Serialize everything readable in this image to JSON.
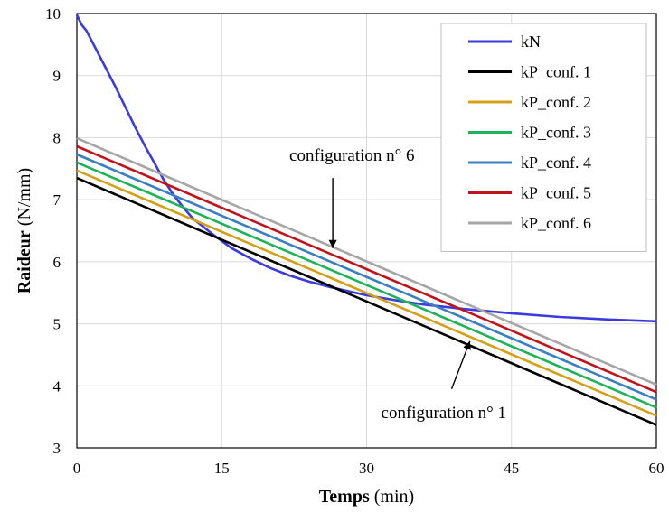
{
  "chart_data": {
    "type": "line",
    "xlabel_bold": "Temps",
    "xlabel_unit": " (min)",
    "ylabel_bold": "Raideur",
    "ylabel_unit": " (N/mm)",
    "xlim": [
      0,
      60
    ],
    "ylim": [
      3,
      10
    ],
    "xticks": [
      0,
      15,
      30,
      45,
      60
    ],
    "yticks": [
      3,
      4,
      5,
      6,
      7,
      8,
      9,
      10
    ],
    "grid": true,
    "legend_position": "top-right",
    "series": [
      {
        "name": "kN",
        "color": "#3b3bdc",
        "x": [
          0,
          0.5,
          1,
          2,
          3,
          4,
          5,
          6,
          7,
          8,
          9,
          10,
          11,
          12,
          14,
          16,
          18,
          20,
          22,
          24,
          26,
          28,
          30,
          33,
          36,
          40,
          45,
          50,
          55,
          60
        ],
        "y": [
          9.98,
          9.82,
          9.72,
          9.42,
          9.12,
          8.82,
          8.5,
          8.18,
          7.88,
          7.6,
          7.32,
          7.08,
          6.88,
          6.7,
          6.45,
          6.22,
          6.05,
          5.9,
          5.78,
          5.68,
          5.6,
          5.53,
          5.46,
          5.38,
          5.31,
          5.24,
          5.17,
          5.11,
          5.07,
          5.04
        ]
      },
      {
        "name": "kP_conf. 1",
        "color": "#000000",
        "x": [
          0,
          60
        ],
        "y": [
          7.35,
          3.37
        ]
      },
      {
        "name": "kP_conf. 2",
        "color": "#d4a017",
        "x": [
          0,
          60
        ],
        "y": [
          7.47,
          3.52
        ]
      },
      {
        "name": "kP_conf. 3",
        "color": "#1db35a",
        "x": [
          0,
          60
        ],
        "y": [
          7.6,
          3.65
        ]
      },
      {
        "name": "kP_conf. 4",
        "color": "#3a7fc0",
        "x": [
          0,
          60
        ],
        "y": [
          7.73,
          3.78
        ]
      },
      {
        "name": "kP_conf. 5",
        "color": "#c0141c",
        "x": [
          0,
          60
        ],
        "y": [
          7.86,
          3.9
        ]
      },
      {
        "name": "kP_conf. 6",
        "color": "#a6a6a6",
        "x": [
          0,
          60
        ],
        "y": [
          7.99,
          4.02
        ]
      }
    ],
    "annotations": [
      {
        "id": "conf6",
        "text": "configuration n° 6",
        "text_at": [
          22,
          7.63
        ],
        "arrow_from": [
          26.5,
          7.35
        ],
        "arrow_to": [
          26.5,
          6.22
        ]
      },
      {
        "id": "conf1",
        "text": "configuration n° 1",
        "text_at": [
          31.5,
          3.48
        ],
        "arrow_from": [
          38.8,
          3.95
        ],
        "arrow_to": [
          40.7,
          4.72
        ]
      }
    ]
  }
}
